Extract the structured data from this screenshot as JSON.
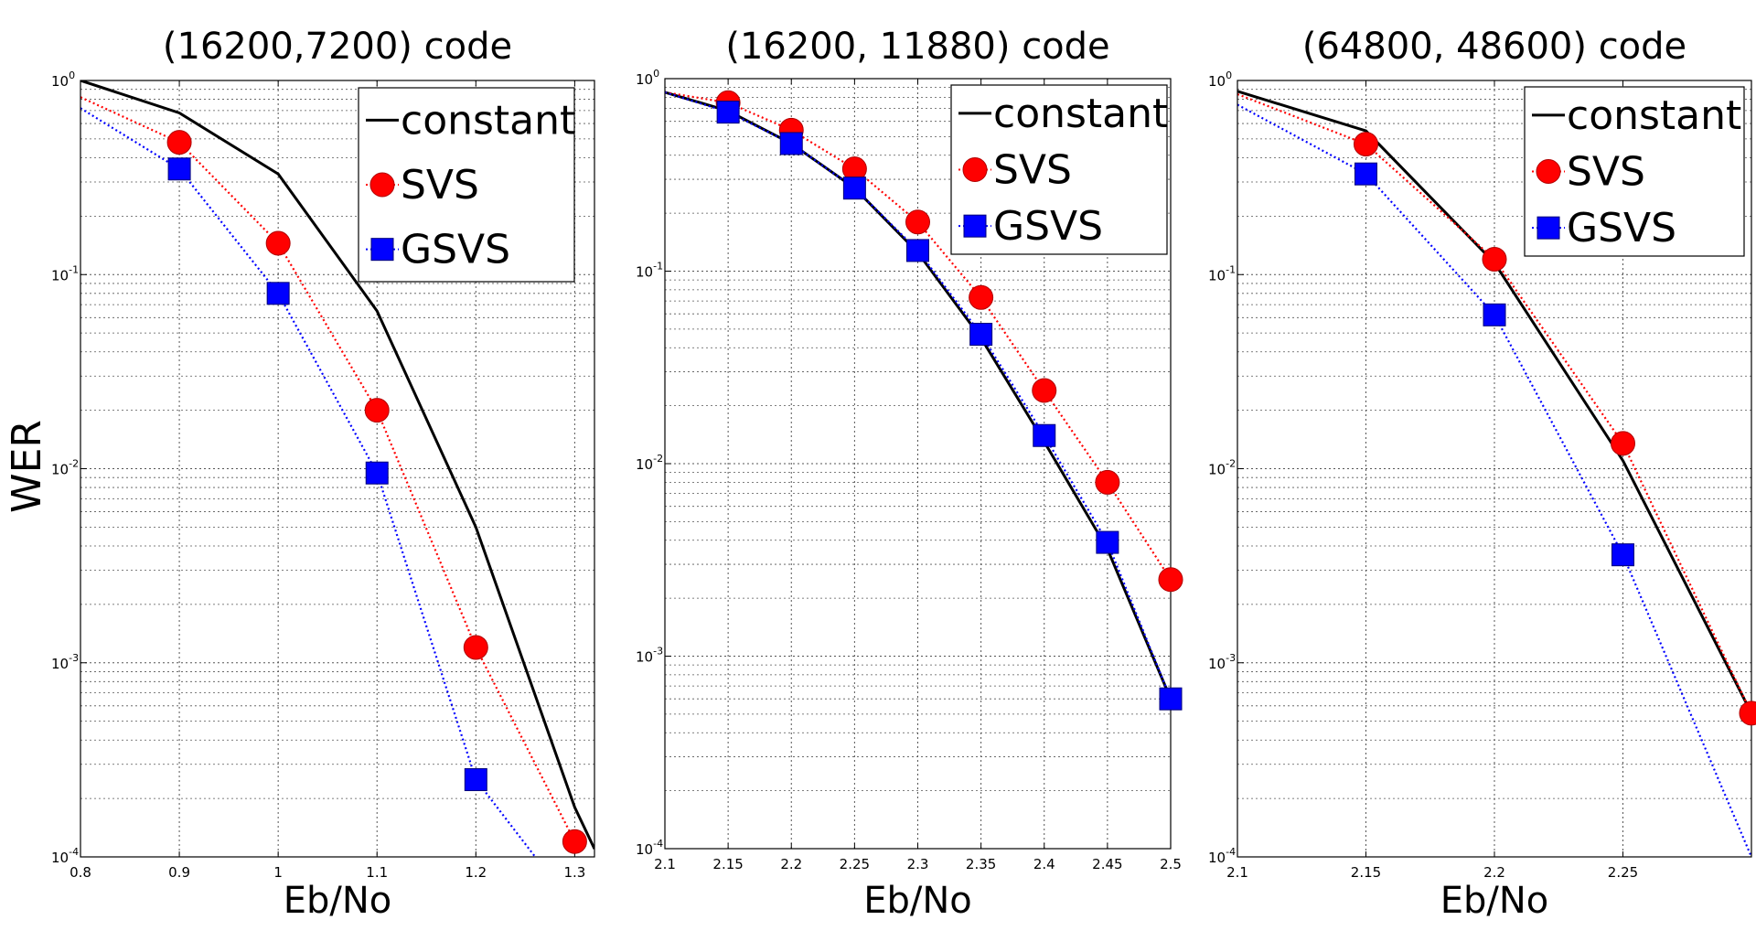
{
  "figure": {
    "ylabel": "WER",
    "colors": {
      "constant": "#000000",
      "svs": "#ff0000",
      "gsvs": "#0000ff",
      "grid": "#555555"
    },
    "legend": [
      "constant",
      "SVS",
      "GSVS"
    ]
  },
  "chart_data": [
    {
      "type": "line",
      "title": "(16200,7200) code",
      "xlabel": "Eb/No",
      "ylabel": "WER",
      "yscale": "log",
      "xlim": [
        0.8,
        1.32
      ],
      "ylim": [
        0.0001,
        1
      ],
      "xticks": [
        0.8,
        0.9,
        1,
        1.1,
        1.2,
        1.3
      ],
      "xtick_labels": [
        "0.8",
        "0.9",
        "1",
        "1.1",
        "1.2",
        "1.3"
      ],
      "ytick_labels": [
        {
          "base": "10",
          "exp": "0"
        },
        {
          "base": "10",
          "exp": "-1"
        },
        {
          "base": "10",
          "exp": "-2"
        },
        {
          "base": "10",
          "exp": "-3"
        },
        {
          "base": "10",
          "exp": "-4"
        }
      ],
      "legend_position": "top-right",
      "series": [
        {
          "name": "constant",
          "style": "solid",
          "marker": "none",
          "x": [
            0.8,
            0.9,
            1.0,
            1.1,
            1.2,
            1.3,
            1.32
          ],
          "y": [
            1.0,
            0.68,
            0.33,
            0.065,
            0.005,
            0.00018,
            0.00011
          ]
        },
        {
          "name": "SVS",
          "style": "dotted",
          "marker": "circle",
          "marker_x": [
            0.9,
            1.0,
            1.1,
            1.2,
            1.3
          ],
          "x": [
            0.8,
            0.9,
            1.0,
            1.1,
            1.2,
            1.3
          ],
          "y": [
            0.82,
            0.48,
            0.145,
            0.02,
            0.0012,
            0.00012
          ]
        },
        {
          "name": "GSVS",
          "style": "dotted",
          "marker": "square",
          "marker_x": [
            0.9,
            1.0,
            1.1,
            1.2
          ],
          "x": [
            0.8,
            0.9,
            1.0,
            1.1,
            1.2,
            1.26
          ],
          "y": [
            0.72,
            0.35,
            0.08,
            0.0095,
            0.00025,
            0.0001
          ]
        }
      ]
    },
    {
      "type": "line",
      "title": "(16200, 11880) code",
      "xlabel": "Eb/No",
      "ylabel": "",
      "yscale": "log",
      "xlim": [
        2.1,
        2.5
      ],
      "ylim": [
        0.0001,
        1
      ],
      "xticks": [
        2.1,
        2.15,
        2.2,
        2.25,
        2.3,
        2.35,
        2.4,
        2.45,
        2.5
      ],
      "xtick_labels": [
        "2.1",
        "2.15",
        "2.2",
        "2.25",
        "2.3",
        "2.35",
        "2.4",
        "2.45",
        "2.5"
      ],
      "ytick_labels": [
        {
          "base": "10",
          "exp": "0"
        },
        {
          "base": "10",
          "exp": "-1"
        },
        {
          "base": "10",
          "exp": "-2"
        },
        {
          "base": "10",
          "exp": "-3"
        },
        {
          "base": "10",
          "exp": "-4"
        }
      ],
      "legend_position": "top-right",
      "series": [
        {
          "name": "constant",
          "style": "solid",
          "marker": "none",
          "x": [
            2.1,
            2.15,
            2.2,
            2.25,
            2.3,
            2.35,
            2.4,
            2.45,
            2.5
          ],
          "y": [
            0.85,
            0.68,
            0.46,
            0.27,
            0.125,
            0.045,
            0.013,
            0.0036,
            0.0006
          ]
        },
        {
          "name": "SVS",
          "style": "dotted",
          "marker": "circle",
          "marker_x": [
            2.15,
            2.2,
            2.25,
            2.3,
            2.35,
            2.4,
            2.45,
            2.5
          ],
          "x": [
            2.1,
            2.15,
            2.2,
            2.25,
            2.3,
            2.35,
            2.4,
            2.45,
            2.5
          ],
          "y": [
            0.85,
            0.75,
            0.54,
            0.34,
            0.18,
            0.073,
            0.024,
            0.008,
            0.0025
          ]
        },
        {
          "name": "GSVS",
          "style": "dotted",
          "marker": "square",
          "marker_x": [
            2.15,
            2.2,
            2.25,
            2.3,
            2.35,
            2.4,
            2.45,
            2.5
          ],
          "x": [
            2.1,
            2.15,
            2.2,
            2.25,
            2.3,
            2.35,
            2.4,
            2.45,
            2.5
          ],
          "y": [
            0.85,
            0.67,
            0.46,
            0.27,
            0.128,
            0.047,
            0.014,
            0.0039,
            0.0006
          ]
        }
      ]
    },
    {
      "type": "line",
      "title": "(64800, 48600) code",
      "xlabel": "Eb/No",
      "ylabel": "",
      "yscale": "log",
      "xlim": [
        2.1,
        2.3
      ],
      "ylim": [
        0.0001,
        1
      ],
      "xticks": [
        2.1,
        2.15,
        2.2,
        2.25
      ],
      "xtick_labels": [
        "2.1",
        "2.15",
        "2.2",
        "2.25"
      ],
      "ytick_labels": [
        {
          "base": "10",
          "exp": "0"
        },
        {
          "base": "10",
          "exp": "-1"
        },
        {
          "base": "10",
          "exp": "-2"
        },
        {
          "base": "10",
          "exp": "-3"
        },
        {
          "base": "10",
          "exp": "-4"
        }
      ],
      "legend_position": "top-right",
      "series": [
        {
          "name": "constant",
          "style": "solid",
          "marker": "none",
          "x": [
            2.1,
            2.15,
            2.2,
            2.25,
            2.3
          ],
          "y": [
            0.88,
            0.55,
            0.115,
            0.011,
            0.00055
          ]
        },
        {
          "name": "SVS",
          "style": "dotted",
          "marker": "circle",
          "marker_x": [
            2.15,
            2.2,
            2.25,
            2.3
          ],
          "x": [
            2.1,
            2.15,
            2.2,
            2.25,
            2.3
          ],
          "y": [
            0.85,
            0.47,
            0.12,
            0.0135,
            0.00055
          ]
        },
        {
          "name": "GSVS",
          "style": "dotted",
          "marker": "square",
          "marker_x": [
            2.15,
            2.2,
            2.25
          ],
          "x": [
            2.1,
            2.15,
            2.2,
            2.25,
            2.3
          ],
          "y": [
            0.75,
            0.33,
            0.062,
            0.0036,
            0.0001
          ]
        }
      ]
    }
  ]
}
